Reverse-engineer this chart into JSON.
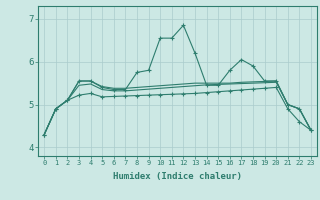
{
  "xlabel": "Humidex (Indice chaleur)",
  "x": [
    0,
    1,
    2,
    3,
    4,
    5,
    6,
    7,
    8,
    9,
    10,
    11,
    12,
    13,
    14,
    15,
    16,
    17,
    18,
    19,
    20,
    21,
    22,
    23
  ],
  "line_jagged": [
    4.3,
    4.9,
    5.1,
    5.55,
    5.55,
    5.4,
    5.35,
    5.35,
    5.75,
    5.8,
    6.55,
    6.55,
    6.85,
    6.2,
    5.45,
    5.45,
    5.8,
    6.05,
    5.9,
    5.55,
    5.55,
    5.0,
    4.9,
    4.4
  ],
  "line_flat1": [
    4.3,
    4.9,
    5.1,
    5.55,
    5.55,
    5.42,
    5.38,
    5.38,
    5.4,
    5.42,
    5.44,
    5.46,
    5.48,
    5.5,
    5.5,
    5.5,
    5.5,
    5.52,
    5.53,
    5.54,
    5.55,
    5.0,
    4.9,
    4.4
  ],
  "line_flat2": [
    4.3,
    4.9,
    5.1,
    5.45,
    5.48,
    5.35,
    5.32,
    5.32,
    5.34,
    5.36,
    5.38,
    5.4,
    5.42,
    5.44,
    5.46,
    5.47,
    5.48,
    5.49,
    5.5,
    5.51,
    5.52,
    5.0,
    4.9,
    4.4
  ],
  "line_slope": [
    4.3,
    4.9,
    5.1,
    5.22,
    5.26,
    5.18,
    5.19,
    5.2,
    5.21,
    5.22,
    5.23,
    5.24,
    5.25,
    5.26,
    5.28,
    5.3,
    5.32,
    5.34,
    5.36,
    5.38,
    5.4,
    4.9,
    4.6,
    4.4
  ],
  "color": "#2e7d6e",
  "bg_color": "#cce8e4",
  "grid_color": "#aacccc",
  "ylim": [
    3.8,
    7.3
  ],
  "yticks": [
    4,
    5,
    6,
    7
  ],
  "xlim": [
    -0.5,
    23.5
  ]
}
